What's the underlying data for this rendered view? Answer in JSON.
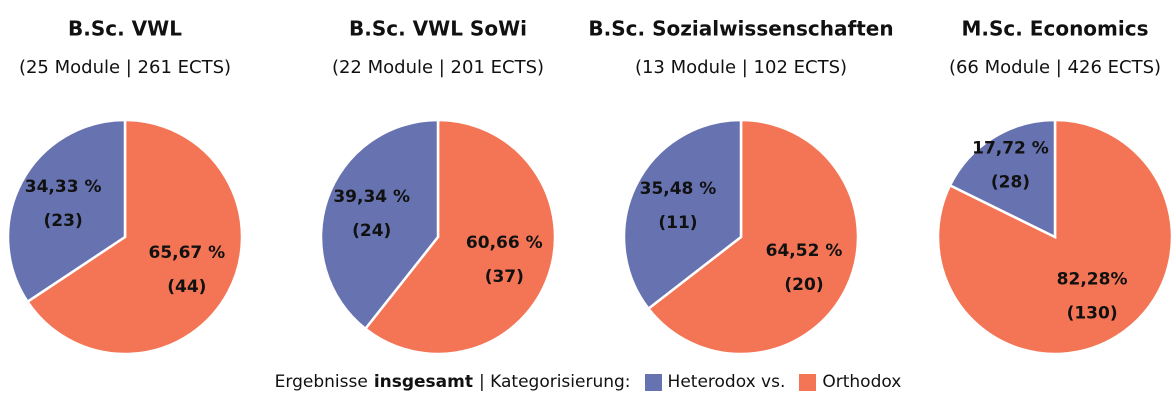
{
  "chart_data": [
    {
      "type": "pie",
      "title": "B.Sc. VWL",
      "subtitle": "(25 Module | 261 ECTS)",
      "values": [
        34.33,
        65.67
      ],
      "value_labels": [
        "34,33 %",
        "65,67 %"
      ],
      "counts": [
        23,
        44
      ],
      "count_labels": [
        "(23)",
        "(44)"
      ],
      "colors": [
        "#6673b0",
        "#f37555"
      ]
    },
    {
      "type": "pie",
      "title": "B.Sc. VWL SoWi",
      "subtitle": "(22 Module | 201 ECTS)",
      "values": [
        39.34,
        60.66
      ],
      "value_labels": [
        "39,34 %",
        "60,66 %"
      ],
      "counts": [
        24,
        37
      ],
      "count_labels": [
        "(24)",
        "(37)"
      ],
      "colors": [
        "#6673b0",
        "#f37555"
      ]
    },
    {
      "type": "pie",
      "title": "B.Sc. Sozialwissenschaften",
      "subtitle": "(13 Module | 102 ECTS)",
      "values": [
        35.48,
        64.52
      ],
      "value_labels": [
        "35,48 %",
        "64,52 %"
      ],
      "counts": [
        11,
        20
      ],
      "count_labels": [
        "(11)",
        "(20)"
      ],
      "colors": [
        "#6673b0",
        "#f37555"
      ]
    },
    {
      "type": "pie",
      "title": "M.Sc. Economics",
      "subtitle": "(66 Module | 426 ECTS)",
      "values": [
        17.72,
        82.28
      ],
      "value_labels": [
        "17,72 %",
        "82,28%"
      ],
      "counts": [
        28,
        130
      ],
      "count_labels": [
        "(28)",
        "(130)"
      ],
      "colors": [
        "#6673b0",
        "#f37555"
      ]
    }
  ],
  "legend": {
    "prefix": "Ergebnisse",
    "bold": "insgesamt",
    "suffix": "| Kategorisierung:",
    "items": [
      {
        "name": "Heterodox vs.",
        "color": "#6673b0"
      },
      {
        "name": "Orthodox",
        "color": "#f37555"
      }
    ]
  }
}
